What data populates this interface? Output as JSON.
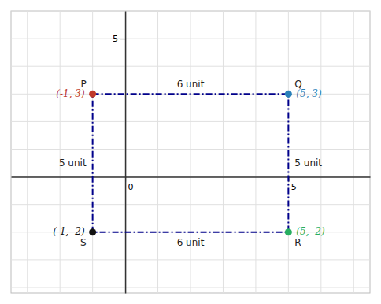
{
  "chart_data": {
    "type": "scatter",
    "xlim": [
      -3.5,
      7.5
    ],
    "ylim": [
      -4.2,
      6.0
    ],
    "xticks": [
      0,
      5
    ],
    "yticks": [
      5
    ],
    "grid": true,
    "series": [
      {
        "type": "line",
        "color": "#00008b",
        "line_style": "dashdot",
        "x": [
          -1,
          5,
          5,
          -1,
          -1
        ],
        "values": [
          3,
          3,
          -2,
          -2,
          3
        ]
      },
      {
        "type": "scatter",
        "marker": "circle",
        "x": [
          -1,
          5,
          5,
          -1
        ],
        "values": [
          3,
          3,
          -2,
          -2
        ],
        "colors": [
          "#c0392b",
          "#2980b9",
          "#27ae60",
          "#111111"
        ],
        "data_labels": true,
        "value_labels": [
          "(-1, 3)",
          "(5, 3)",
          "(5, -2)",
          "(-1, -2)"
        ]
      }
    ],
    "annotations": [
      {
        "text": "P",
        "x": -1,
        "y": 3
      },
      {
        "text": "Q",
        "x": 5,
        "y": 3
      },
      {
        "text": "R",
        "x": 5,
        "y": -2
      },
      {
        "text": "S",
        "x": -1,
        "y": -2
      },
      {
        "text": "6 unit",
        "x": 2,
        "y": 3
      },
      {
        "text": "6 unit",
        "x": 2,
        "y": -2
      },
      {
        "text": "5 unit",
        "x": -1,
        "y": 0.5
      },
      {
        "text": "5 unit",
        "x": 5,
        "y": 0.5
      }
    ]
  }
}
